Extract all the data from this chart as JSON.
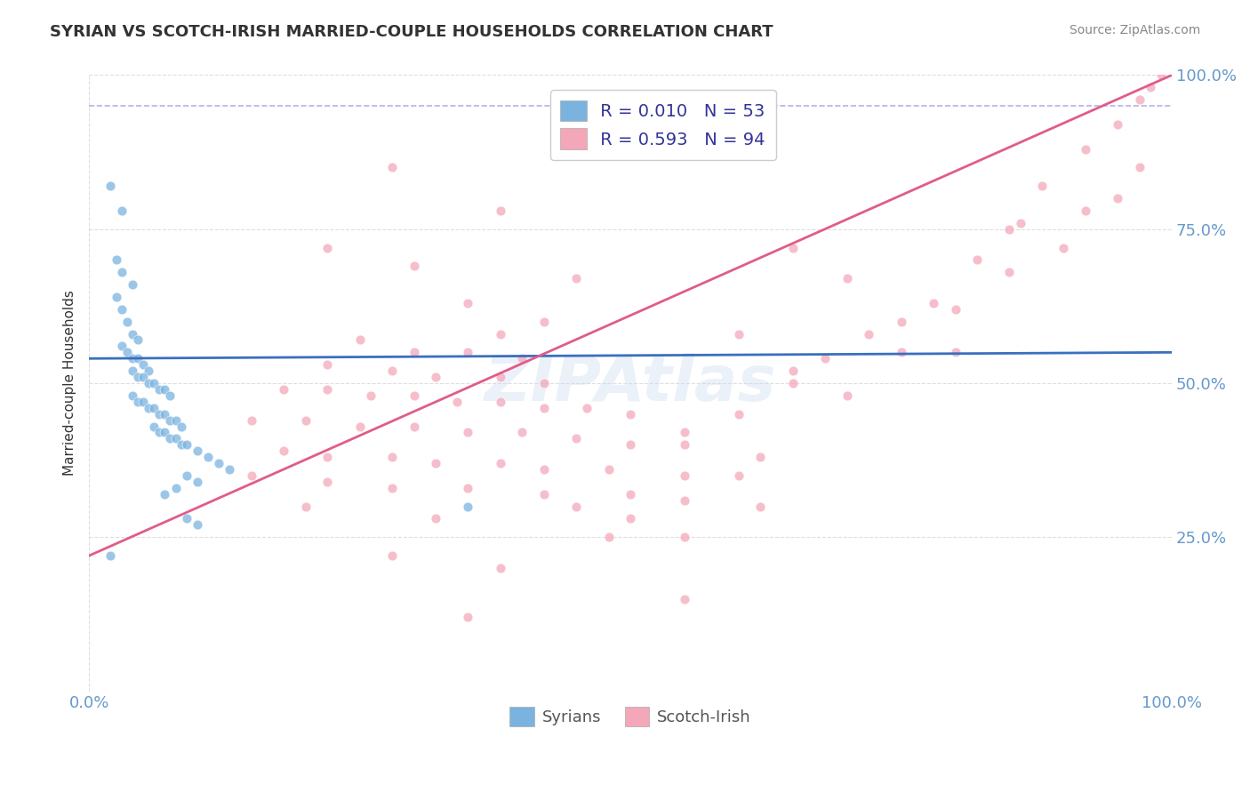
{
  "title": "SYRIAN VS SCOTCH-IRISH MARRIED-COUPLE HOUSEHOLDS CORRELATION CHART",
  "source": "Source: ZipAtlas.com",
  "xlabel": "",
  "ylabel": "Married-couple Households",
  "xlim": [
    0.0,
    1.0
  ],
  "ylim": [
    0.0,
    1.0
  ],
  "xtick_labels": [
    "0.0%",
    "100.0%"
  ],
  "ytick_labels": [
    "25.0%",
    "50.0%",
    "75.0%",
    "100.0%"
  ],
  "ytick_positions": [
    0.25,
    0.5,
    0.75,
    1.0
  ],
  "watermark": "ZIPAtlas",
  "legend_R_syrian": "R = 0.010",
  "legend_N_syrian": "N = 53",
  "legend_R_scotch": "R = 0.593",
  "legend_N_scotch": "N = 94",
  "syrian_color": "#7ab3e0",
  "scotch_color": "#f4a7b9",
  "syrian_line_color": "#3a6fbf",
  "scotch_line_color": "#e05c8a",
  "dashed_line_color": "#a0a0e0",
  "background_color": "#ffffff",
  "grid_color": "#d0d0d0",
  "title_color": "#333333",
  "axis_label_color": "#6699cc",
  "syrian_points": [
    [
      0.02,
      0.82
    ],
    [
      0.03,
      0.78
    ],
    [
      0.025,
      0.7
    ],
    [
      0.03,
      0.68
    ],
    [
      0.04,
      0.66
    ],
    [
      0.025,
      0.64
    ],
    [
      0.03,
      0.62
    ],
    [
      0.035,
      0.6
    ],
    [
      0.04,
      0.58
    ],
    [
      0.045,
      0.57
    ],
    [
      0.03,
      0.56
    ],
    [
      0.035,
      0.55
    ],
    [
      0.04,
      0.54
    ],
    [
      0.045,
      0.54
    ],
    [
      0.05,
      0.53
    ],
    [
      0.055,
      0.52
    ],
    [
      0.04,
      0.52
    ],
    [
      0.045,
      0.51
    ],
    [
      0.05,
      0.51
    ],
    [
      0.055,
      0.5
    ],
    [
      0.06,
      0.5
    ],
    [
      0.065,
      0.49
    ],
    [
      0.07,
      0.49
    ],
    [
      0.075,
      0.48
    ],
    [
      0.04,
      0.48
    ],
    [
      0.045,
      0.47
    ],
    [
      0.05,
      0.47
    ],
    [
      0.055,
      0.46
    ],
    [
      0.06,
      0.46
    ],
    [
      0.065,
      0.45
    ],
    [
      0.07,
      0.45
    ],
    [
      0.075,
      0.44
    ],
    [
      0.08,
      0.44
    ],
    [
      0.085,
      0.43
    ],
    [
      0.06,
      0.43
    ],
    [
      0.065,
      0.42
    ],
    [
      0.07,
      0.42
    ],
    [
      0.075,
      0.41
    ],
    [
      0.08,
      0.41
    ],
    [
      0.085,
      0.4
    ],
    [
      0.09,
      0.4
    ],
    [
      0.1,
      0.39
    ],
    [
      0.11,
      0.38
    ],
    [
      0.12,
      0.37
    ],
    [
      0.13,
      0.36
    ],
    [
      0.09,
      0.35
    ],
    [
      0.1,
      0.34
    ],
    [
      0.08,
      0.33
    ],
    [
      0.07,
      0.32
    ],
    [
      0.09,
      0.28
    ],
    [
      0.1,
      0.27
    ],
    [
      0.02,
      0.22
    ],
    [
      0.35,
      0.3
    ]
  ],
  "scotch_points": [
    [
      0.28,
      0.85
    ],
    [
      0.38,
      0.78
    ],
    [
      0.22,
      0.72
    ],
    [
      0.3,
      0.69
    ],
    [
      0.45,
      0.67
    ],
    [
      0.35,
      0.63
    ],
    [
      0.42,
      0.6
    ],
    [
      0.38,
      0.58
    ],
    [
      0.25,
      0.57
    ],
    [
      0.3,
      0.55
    ],
    [
      0.35,
      0.55
    ],
    [
      0.4,
      0.54
    ],
    [
      0.22,
      0.53
    ],
    [
      0.28,
      0.52
    ],
    [
      0.32,
      0.51
    ],
    [
      0.38,
      0.51
    ],
    [
      0.42,
      0.5
    ],
    [
      0.18,
      0.49
    ],
    [
      0.22,
      0.49
    ],
    [
      0.26,
      0.48
    ],
    [
      0.3,
      0.48
    ],
    [
      0.34,
      0.47
    ],
    [
      0.38,
      0.47
    ],
    [
      0.42,
      0.46
    ],
    [
      0.46,
      0.46
    ],
    [
      0.5,
      0.45
    ],
    [
      0.15,
      0.44
    ],
    [
      0.2,
      0.44
    ],
    [
      0.25,
      0.43
    ],
    [
      0.3,
      0.43
    ],
    [
      0.35,
      0.42
    ],
    [
      0.4,
      0.42
    ],
    [
      0.45,
      0.41
    ],
    [
      0.5,
      0.4
    ],
    [
      0.55,
      0.4
    ],
    [
      0.18,
      0.39
    ],
    [
      0.22,
      0.38
    ],
    [
      0.28,
      0.38
    ],
    [
      0.32,
      0.37
    ],
    [
      0.38,
      0.37
    ],
    [
      0.42,
      0.36
    ],
    [
      0.48,
      0.36
    ],
    [
      0.55,
      0.35
    ],
    [
      0.6,
      0.35
    ],
    [
      0.22,
      0.34
    ],
    [
      0.28,
      0.33
    ],
    [
      0.35,
      0.33
    ],
    [
      0.42,
      0.32
    ],
    [
      0.5,
      0.32
    ],
    [
      0.55,
      0.31
    ],
    [
      0.62,
      0.3
    ],
    [
      0.65,
      0.72
    ],
    [
      0.55,
      0.25
    ],
    [
      0.28,
      0.22
    ],
    [
      0.38,
      0.2
    ],
    [
      0.35,
      0.12
    ],
    [
      0.7,
      0.67
    ],
    [
      0.75,
      0.6
    ],
    [
      0.8,
      0.55
    ],
    [
      0.85,
      0.68
    ],
    [
      0.9,
      0.72
    ],
    [
      0.92,
      0.78
    ],
    [
      0.95,
      0.8
    ],
    [
      0.97,
      0.85
    ],
    [
      0.6,
      0.58
    ],
    [
      0.65,
      0.52
    ],
    [
      0.7,
      0.48
    ],
    [
      0.75,
      0.55
    ],
    [
      0.8,
      0.62
    ],
    [
      0.85,
      0.75
    ],
    [
      0.88,
      0.82
    ],
    [
      0.92,
      0.88
    ],
    [
      0.95,
      0.92
    ],
    [
      0.97,
      0.96
    ],
    [
      0.98,
      0.98
    ],
    [
      0.99,
      1.0
    ],
    [
      0.55,
      0.42
    ],
    [
      0.6,
      0.45
    ],
    [
      0.65,
      0.5
    ],
    [
      0.68,
      0.54
    ],
    [
      0.72,
      0.58
    ],
    [
      0.78,
      0.63
    ],
    [
      0.82,
      0.7
    ],
    [
      0.86,
      0.76
    ],
    [
      0.5,
      0.28
    ],
    [
      0.55,
      0.15
    ],
    [
      0.62,
      0.38
    ],
    [
      0.45,
      0.3
    ],
    [
      0.32,
      0.28
    ],
    [
      0.48,
      0.25
    ],
    [
      0.2,
      0.3
    ],
    [
      0.15,
      0.35
    ]
  ]
}
